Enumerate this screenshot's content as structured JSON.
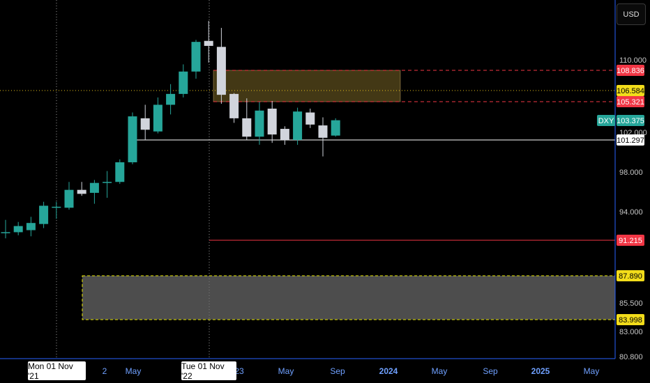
{
  "currency_button": "USD",
  "chart_data": {
    "type": "candlestick",
    "symbol": "DXY",
    "last_price": "103.375",
    "y_ticks": [
      "110.000",
      "102.000",
      "98.000",
      "94.000",
      "91.215",
      "87.890",
      "85.500",
      "83.000",
      "80.800"
    ],
    "x_ticks": [
      "2",
      "May",
      "23",
      "May",
      "Sep",
      "2024",
      "May",
      "Sep",
      "2025",
      "May"
    ],
    "crosshair_labels": [
      "Mon 01 Nov '21",
      "Tue 01 Nov '22"
    ],
    "candles": [
      {
        "o": 91.9,
        "h": 93.2,
        "l": 91.4,
        "c": 92.0
      },
      {
        "o": 92.0,
        "h": 93.0,
        "l": 91.7,
        "c": 92.6
      },
      {
        "o": 92.2,
        "h": 93.5,
        "l": 91.6,
        "c": 92.9
      },
      {
        "o": 92.8,
        "h": 95.0,
        "l": 92.4,
        "c": 94.6
      },
      {
        "o": 94.4,
        "h": 95.0,
        "l": 93.3,
        "c": 94.5
      },
      {
        "o": 94.4,
        "h": 97.0,
        "l": 94.2,
        "c": 96.2
      },
      {
        "o": 96.2,
        "h": 97.0,
        "l": 95.6,
        "c": 95.8
      },
      {
        "o": 95.9,
        "h": 97.2,
        "l": 94.8,
        "c": 96.9
      },
      {
        "o": 96.9,
        "h": 98.1,
        "l": 95.4,
        "c": 97.0
      },
      {
        "o": 97.0,
        "h": 99.3,
        "l": 96.8,
        "c": 99.0
      },
      {
        "o": 99.0,
        "h": 104.2,
        "l": 98.8,
        "c": 103.8
      },
      {
        "o": 103.6,
        "h": 105.0,
        "l": 101.3,
        "c": 102.3
      },
      {
        "o": 102.1,
        "h": 105.8,
        "l": 101.9,
        "c": 105.0
      },
      {
        "o": 105.0,
        "h": 107.3,
        "l": 104.0,
        "c": 106.2
      },
      {
        "o": 106.2,
        "h": 109.5,
        "l": 105.8,
        "c": 108.7
      },
      {
        "o": 108.7,
        "h": 112.0,
        "l": 107.9,
        "c": 111.8
      },
      {
        "o": 111.9,
        "h": 113.9,
        "l": 109.7,
        "c": 111.4
      },
      {
        "o": 111.3,
        "h": 113.2,
        "l": 105.1,
        "c": 106.1
      },
      {
        "o": 106.2,
        "h": 106.3,
        "l": 103.1,
        "c": 103.6
      },
      {
        "o": 103.6,
        "h": 105.7,
        "l": 101.3,
        "c": 101.6
      },
      {
        "o": 101.6,
        "h": 105.3,
        "l": 100.8,
        "c": 104.4
      },
      {
        "o": 104.6,
        "h": 105.4,
        "l": 101.0,
        "c": 101.8
      },
      {
        "o": 102.4,
        "h": 102.7,
        "l": 100.8,
        "c": 101.3
      },
      {
        "o": 101.3,
        "h": 104.7,
        "l": 100.8,
        "c": 104.3
      },
      {
        "o": 104.2,
        "h": 104.6,
        "l": 102.5,
        "c": 102.9
      },
      {
        "o": 102.8,
        "h": 103.7,
        "l": 99.6,
        "c": 101.5
      },
      {
        "o": 101.7,
        "h": 103.6,
        "l": 101.6,
        "c": 103.4
      }
    ],
    "levels": [
      {
        "label": "108.836",
        "color": "#f23645",
        "style": "dashed"
      },
      {
        "label": "106.584",
        "color": "#e8c21a",
        "style": "dotted"
      },
      {
        "label": "105.321",
        "color": "#f23645",
        "style": "dashed"
      },
      {
        "label": "101.297",
        "color": "#ffffff",
        "style": "solid"
      },
      {
        "label": "91.215",
        "color": "#f23645",
        "style": "solid"
      }
    ],
    "zones": [
      {
        "top": "108.836",
        "bottom": "105.321",
        "color": "#f2c94c"
      },
      {
        "top": "87.890",
        "bottom": "83.998",
        "color": "#e8e800"
      }
    ],
    "colors": {
      "up": "#26a69a",
      "down": "#d1d4dc",
      "background": "#000000",
      "axis": "#2962ff"
    }
  }
}
